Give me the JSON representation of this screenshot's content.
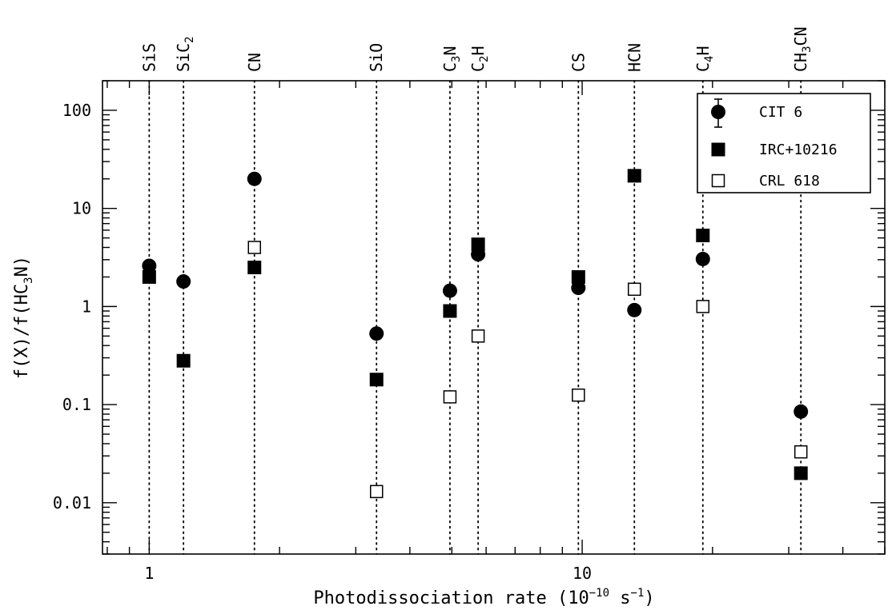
{
  "chart_data": {
    "type": "scatter",
    "xscale": "log",
    "yscale": "log",
    "xlim": [
      0.78,
      50
    ],
    "ylim": [
      0.003,
      200
    ],
    "xlabel": {
      "pre": "Photodissociation rate (10",
      "exp": "−10",
      "mid": " s",
      "exp2": "−1",
      "post": ")"
    },
    "ylabel": {
      "pre": "f(X)/f(HC",
      "sub": "3",
      "post": "N)"
    },
    "x_ticks": [
      {
        "value": 1,
        "label": "1"
      },
      {
        "value": 10,
        "label": "10"
      }
    ],
    "y_ticks": [
      {
        "value": 0.01,
        "label": "0.01"
      },
      {
        "value": 0.1,
        "label": "0.1"
      },
      {
        "value": 1,
        "label": "1"
      },
      {
        "value": 10,
        "label": "10"
      },
      {
        "value": 100,
        "label": "100"
      }
    ],
    "molecules": [
      {
        "x": 1.0,
        "parts": [
          {
            "t": "SiS"
          }
        ]
      },
      {
        "x": 1.2,
        "parts": [
          {
            "t": "SiC"
          },
          {
            "t": "2",
            "sub": true
          }
        ]
      },
      {
        "x": 1.75,
        "parts": [
          {
            "t": "CN"
          }
        ]
      },
      {
        "x": 3.35,
        "parts": [
          {
            "t": "SiO"
          }
        ]
      },
      {
        "x": 4.95,
        "parts": [
          {
            "t": "C"
          },
          {
            "t": "3",
            "sub": true
          },
          {
            "t": "N"
          }
        ]
      },
      {
        "x": 5.75,
        "parts": [
          {
            "t": "C"
          },
          {
            "t": "2",
            "sub": true
          },
          {
            "t": "H"
          }
        ]
      },
      {
        "x": 9.8,
        "parts": [
          {
            "t": "CS"
          }
        ]
      },
      {
        "x": 13.2,
        "parts": [
          {
            "t": "HCN"
          }
        ]
      },
      {
        "x": 19.0,
        "parts": [
          {
            "t": "C"
          },
          {
            "t": "4",
            "sub": true
          },
          {
            "t": "H"
          }
        ]
      },
      {
        "x": 32.0,
        "parts": [
          {
            "t": "CH"
          },
          {
            "t": "3",
            "sub": true
          },
          {
            "t": "CN"
          }
        ]
      }
    ],
    "series": [
      {
        "name": "CIT 6",
        "marker": "filled-circle",
        "points": [
          {
            "x": 1.0,
            "y": 2.6
          },
          {
            "x": 1.2,
            "y": 1.8
          },
          {
            "x": 1.75,
            "y": 20
          },
          {
            "x": 3.35,
            "y": 0.53
          },
          {
            "x": 4.95,
            "y": 1.45
          },
          {
            "x": 5.75,
            "y": 3.4
          },
          {
            "x": 9.8,
            "y": 1.55
          },
          {
            "x": 13.2,
            "y": 0.92
          },
          {
            "x": 19.0,
            "y": 3.05
          },
          {
            "x": 32.0,
            "y": 0.085
          }
        ]
      },
      {
        "name": "IRC+10216",
        "marker": "filled-square",
        "points": [
          {
            "x": 1.0,
            "y": 2.0
          },
          {
            "x": 1.2,
            "y": 0.28
          },
          {
            "x": 1.75,
            "y": 2.5
          },
          {
            "x": 3.35,
            "y": 0.18
          },
          {
            "x": 4.95,
            "y": 0.9
          },
          {
            "x": 5.75,
            "y": 4.3
          },
          {
            "x": 9.8,
            "y": 2.0
          },
          {
            "x": 13.2,
            "y": 21.5
          },
          {
            "x": 19.0,
            "y": 5.3
          },
          {
            "x": 32.0,
            "y": 0.02
          }
        ]
      },
      {
        "name": "CRL 618",
        "marker": "open-square",
        "points": [
          {
            "x": 1.75,
            "y": 4.0
          },
          {
            "x": 3.35,
            "y": 0.013
          },
          {
            "x": 4.95,
            "y": 0.12
          },
          {
            "x": 5.75,
            "y": 0.5
          },
          {
            "x": 9.8,
            "y": 0.125
          },
          {
            "x": 13.2,
            "y": 1.5
          },
          {
            "x": 19.0,
            "y": 1.0
          },
          {
            "x": 32.0,
            "y": 0.033
          }
        ]
      }
    ],
    "legend": {
      "position": "top-right",
      "items": [
        {
          "label": "CIT 6",
          "marker": "filled-circle-errorbar"
        },
        {
          "label": "IRC+10216",
          "marker": "filled-square"
        },
        {
          "label": "CRL 618",
          "marker": "open-square"
        }
      ]
    },
    "grid": false,
    "vertical_guides": "dotted"
  }
}
